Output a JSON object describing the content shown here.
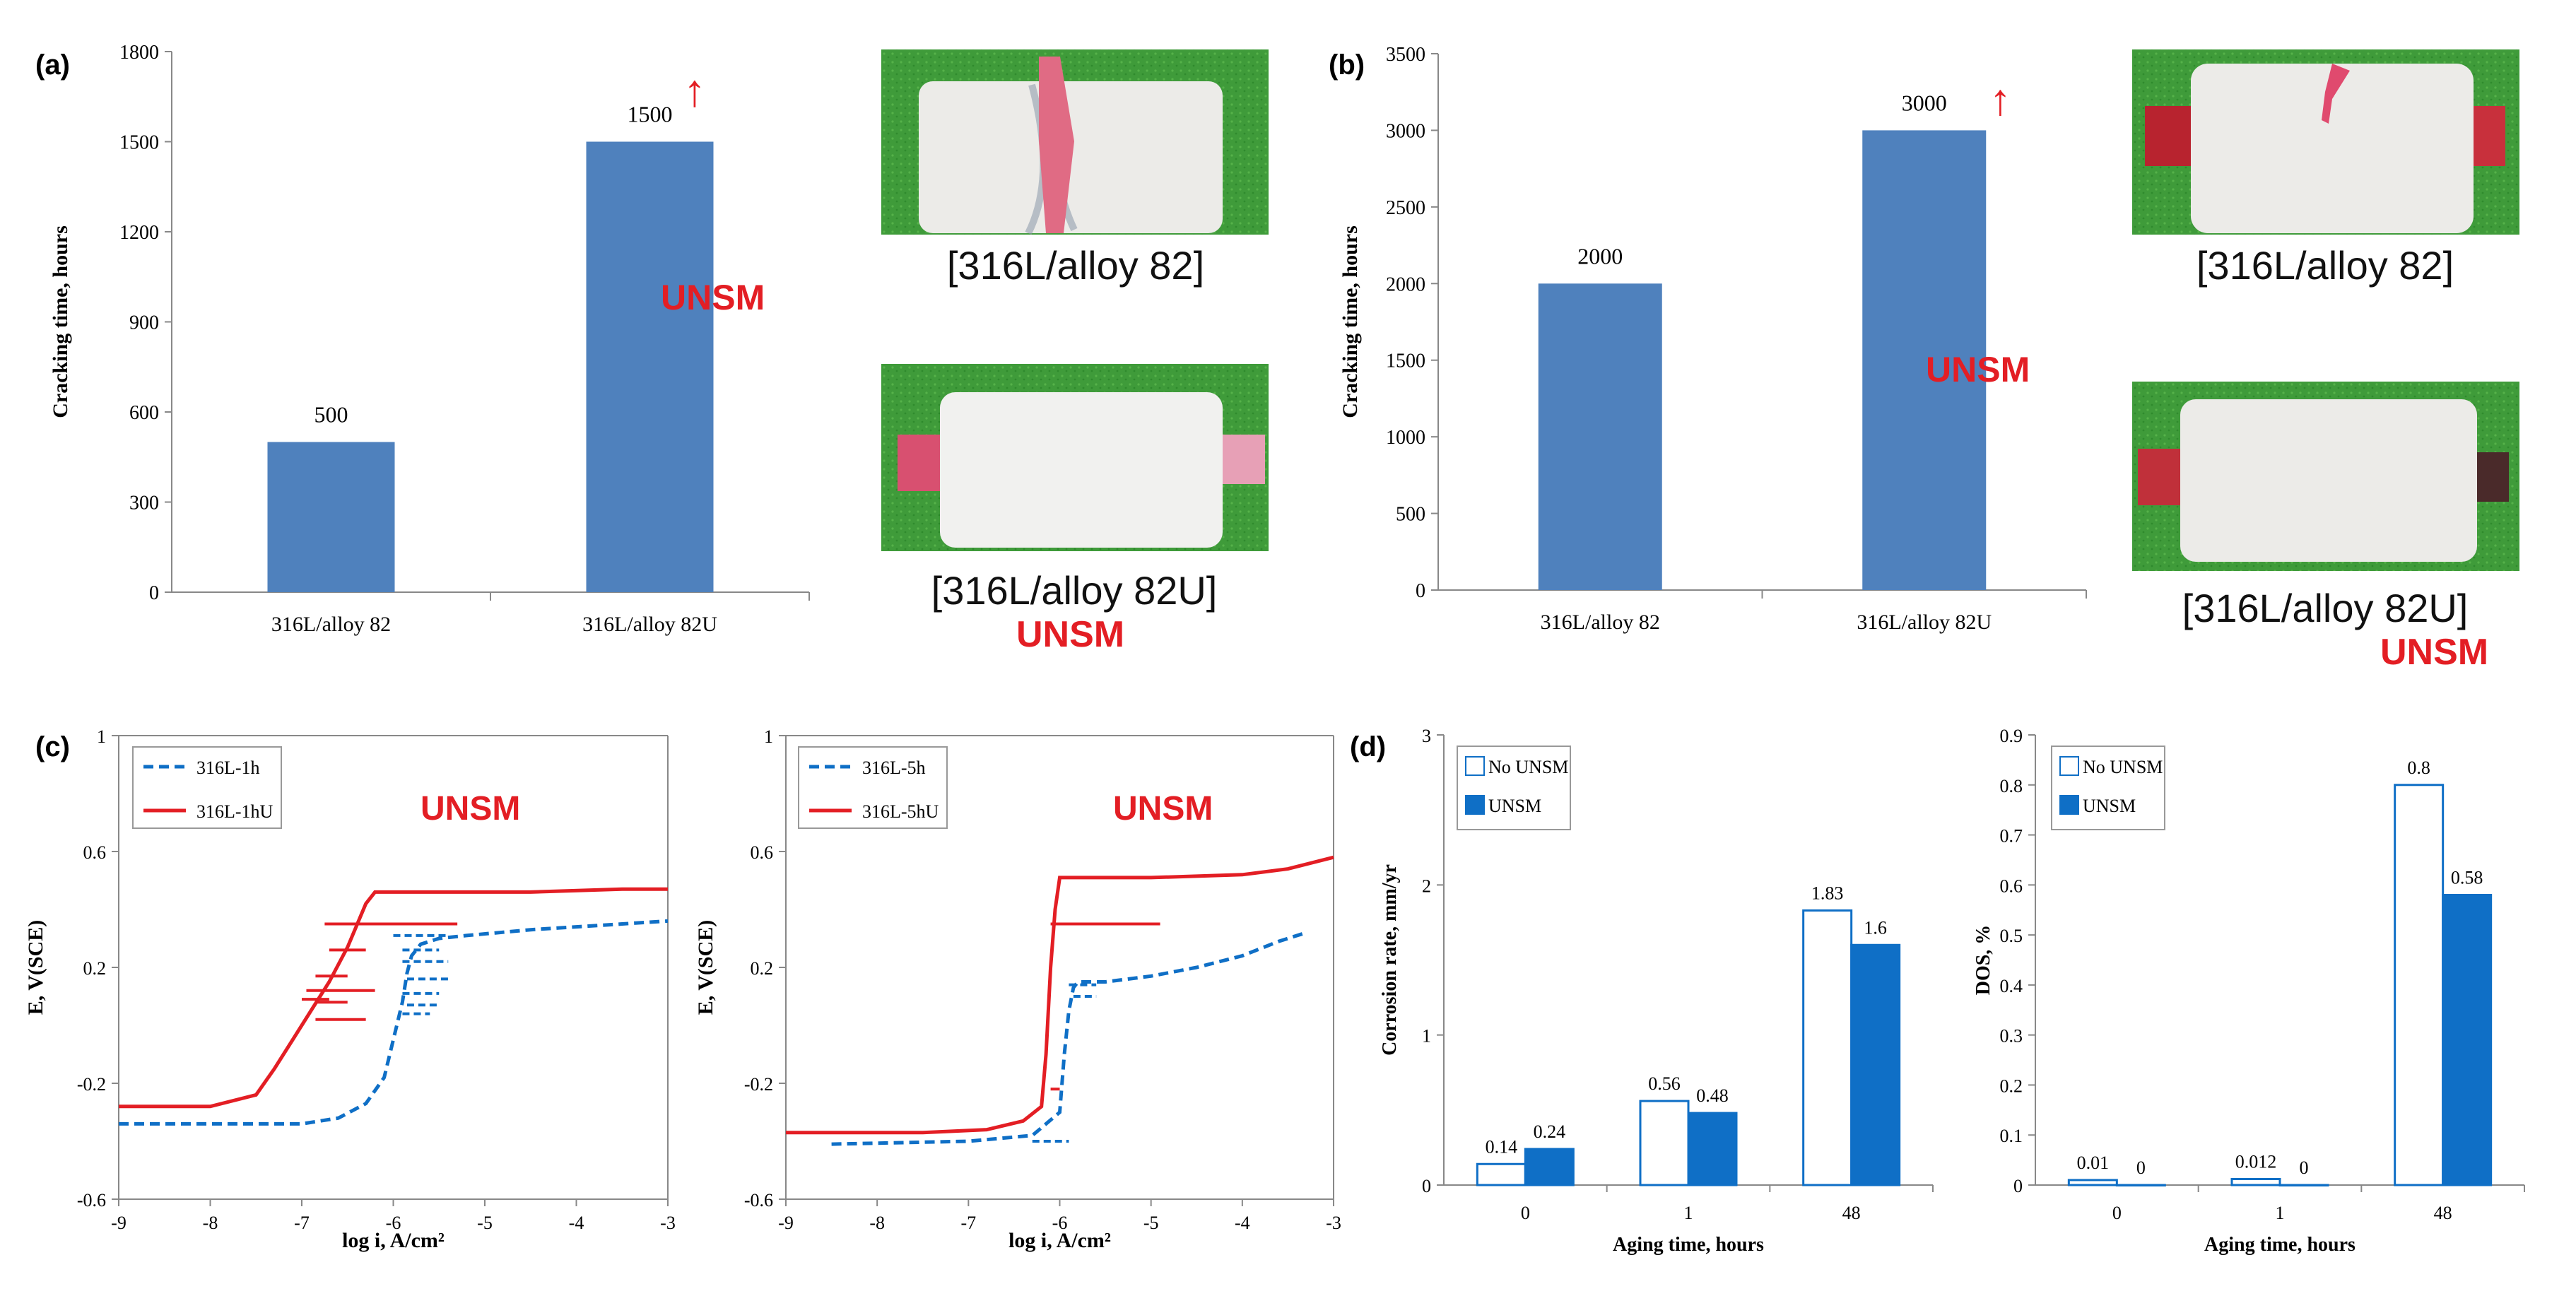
{
  "labels": {
    "a": "(a)",
    "b": "(b)",
    "c": "(c)",
    "d": "(d)"
  },
  "annotations": {
    "unsm": "UNSM",
    "arrow": "↑",
    "photo_a1": "[316L/alloy 82]",
    "photo_a2": "[316L/alloy 82U]",
    "photo_b1": "[316L/alloy 82]",
    "photo_b2": "[316L/alloy 82U]"
  },
  "colors": {
    "bar_blue": "#4f81bd",
    "dark_blue": "#0f6fc6",
    "red": "#e31e24",
    "green": "#3c9a3c"
  },
  "chart_data": [
    {
      "id": "a",
      "type": "bar",
      "ylabel": "Cracking time, hours",
      "categories": [
        "316L/alloy 82",
        "316L/alloy 82U"
      ],
      "values": [
        500,
        1500
      ],
      "value_labels": [
        "500",
        "1500"
      ],
      "ylim": [
        0,
        1800
      ],
      "yticks": [
        "0",
        "300",
        "600",
        "900",
        "1200",
        "1500",
        "1800"
      ],
      "grid": false
    },
    {
      "id": "b",
      "type": "bar",
      "ylabel": "Cracking time, hours",
      "categories": [
        "316L/alloy 82",
        "316L/alloy 82U"
      ],
      "values": [
        2000,
        3000
      ],
      "value_labels": [
        "2000",
        "3000"
      ],
      "ylim": [
        0,
        3500
      ],
      "yticks": [
        "0",
        "500",
        "1000",
        "1500",
        "2000",
        "2500",
        "3000",
        "3500"
      ],
      "grid": false
    },
    {
      "id": "c1",
      "type": "line",
      "xlabel": "log i, A/cm²",
      "ylabel": "E, V(SCE)",
      "xlim": [
        -9,
        -3
      ],
      "ylim": [
        -0.6,
        1
      ],
      "xticks": [
        "-9",
        "-8",
        "-7",
        "-6",
        "-5",
        "-4",
        "-3"
      ],
      "yticks": [
        "-0.6",
        "-0.2",
        "0.2",
        "0.6",
        "1"
      ],
      "legend_position": "top-left",
      "series": [
        {
          "name": "316L-1h",
          "style": "dashed",
          "color": "#0f6fc6",
          "x": [
            -9,
            -7.0,
            -6.6,
            -6.3,
            -6.1,
            -6.0,
            -5.9,
            -5.85,
            -5.8,
            -5.7,
            -5.5,
            -5.2,
            -4.5,
            -3.5,
            -3
          ],
          "y": [
            -0.34,
            -0.34,
            -0.32,
            -0.27,
            -0.18,
            -0.05,
            0.08,
            0.18,
            0.24,
            0.28,
            0.3,
            0.31,
            0.33,
            0.35,
            0.36
          ]
        },
        {
          "name": "316L-1hU",
          "style": "solid",
          "color": "#e31e24",
          "x": [
            -9,
            -8.0,
            -7.5,
            -7.3,
            -7.1,
            -6.9,
            -6.7,
            -6.5,
            -6.3,
            -6.2,
            -5.5,
            -4.5,
            -3.5,
            -3
          ],
          "y": [
            -0.28,
            -0.28,
            -0.24,
            -0.15,
            -0.05,
            0.05,
            0.15,
            0.27,
            0.42,
            0.46,
            0.46,
            0.46,
            0.47,
            0.47
          ]
        }
      ]
    },
    {
      "id": "c2",
      "type": "line",
      "xlabel": "log i, A/cm²",
      "ylabel": "E, V(SCE)",
      "xlim": [
        -9,
        -3
      ],
      "ylim": [
        -0.6,
        1
      ],
      "xticks": [
        "-9",
        "-8",
        "-7",
        "-6",
        "-5",
        "-4",
        "-3"
      ],
      "yticks": [
        "-0.6",
        "-0.2",
        "0.2",
        "0.6",
        "1"
      ],
      "legend_position": "top-left",
      "series": [
        {
          "name": "316L-5h",
          "style": "dashed",
          "color": "#0f6fc6",
          "x": [
            -8.5,
            -7.0,
            -6.3,
            -6.0,
            -5.95,
            -5.9,
            -5.85,
            -5.8,
            -5.5,
            -5.0,
            -4.5,
            -4.0,
            -3.6,
            -3.3
          ],
          "y": [
            -0.41,
            -0.4,
            -0.38,
            -0.3,
            -0.1,
            0.05,
            0.13,
            0.15,
            0.15,
            0.17,
            0.2,
            0.24,
            0.29,
            0.32
          ]
        },
        {
          "name": "316L-5hU",
          "style": "solid",
          "color": "#e31e24",
          "x": [
            -9,
            -7.5,
            -6.8,
            -6.4,
            -6.2,
            -6.15,
            -6.1,
            -6.05,
            -6.0,
            -5.0,
            -4.0,
            -3.5,
            -3.0
          ],
          "y": [
            -0.37,
            -0.37,
            -0.36,
            -0.33,
            -0.28,
            -0.1,
            0.2,
            0.4,
            0.51,
            0.51,
            0.52,
            0.54,
            0.58
          ]
        }
      ]
    },
    {
      "id": "d1",
      "type": "bar",
      "xlabel": "Aging time, hours",
      "ylabel": "Corrosion rate, mm/yr",
      "categories": [
        "0",
        "1",
        "48"
      ],
      "ylim": [
        0,
        3
      ],
      "yticks": [
        "0",
        "1",
        "2",
        "3"
      ],
      "legend_position": "top-left",
      "series": [
        {
          "name": "No UNSM",
          "values": [
            0.14,
            0.56,
            1.83
          ],
          "labels": [
            "0.14",
            "0.56",
            "1.83"
          ]
        },
        {
          "name": "UNSM",
          "values": [
            0.24,
            0.48,
            1.6
          ],
          "labels": [
            "0.24",
            "0.48",
            "1.6"
          ]
        }
      ]
    },
    {
      "id": "d2",
      "type": "bar",
      "xlabel": "Aging time, hours",
      "ylabel": "DOS, %",
      "categories": [
        "0",
        "1",
        "48"
      ],
      "ylim": [
        0,
        0.9
      ],
      "yticks": [
        "0",
        "0.1",
        "0.2",
        "0.3",
        "0.4",
        "0.5",
        "0.6",
        "0.7",
        "0.8",
        "0.9"
      ],
      "legend_position": "top-left",
      "series": [
        {
          "name": "No UNSM",
          "values": [
            0.01,
            0.012,
            0.8
          ],
          "labels": [
            "0.01",
            "0.012",
            "0.8"
          ]
        },
        {
          "name": "UNSM",
          "values": [
            0,
            0,
            0.58
          ],
          "labels": [
            "0",
            "0",
            "0.58"
          ]
        }
      ]
    }
  ]
}
